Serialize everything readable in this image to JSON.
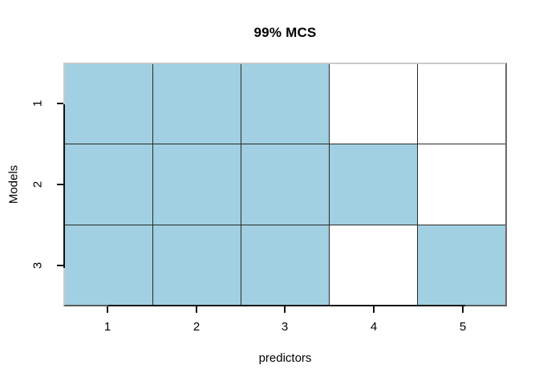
{
  "chart_data": {
    "type": "heatmap",
    "title": "99% MCS",
    "xlabel": "predictors",
    "ylabel": "Models",
    "x_ticks": [
      "1",
      "2",
      "3",
      "4",
      "5"
    ],
    "y_ticks": [
      "1",
      "2",
      "3"
    ],
    "rows": [
      {
        "model": "1",
        "cells": [
          1,
          1,
          1,
          0,
          0
        ]
      },
      {
        "model": "2",
        "cells": [
          1,
          1,
          1,
          1,
          0
        ]
      },
      {
        "model": "3",
        "cells": [
          1,
          1,
          1,
          0,
          1
        ]
      }
    ],
    "colors": {
      "included": "#A0D0E1",
      "excluded": "#FFFFFF",
      "grid_line": "#2A2A2A",
      "axis_line": "#111111",
      "box_light": "#C9C9C9",
      "box_dark": "#686868"
    },
    "legend": "none",
    "grid": "on"
  }
}
